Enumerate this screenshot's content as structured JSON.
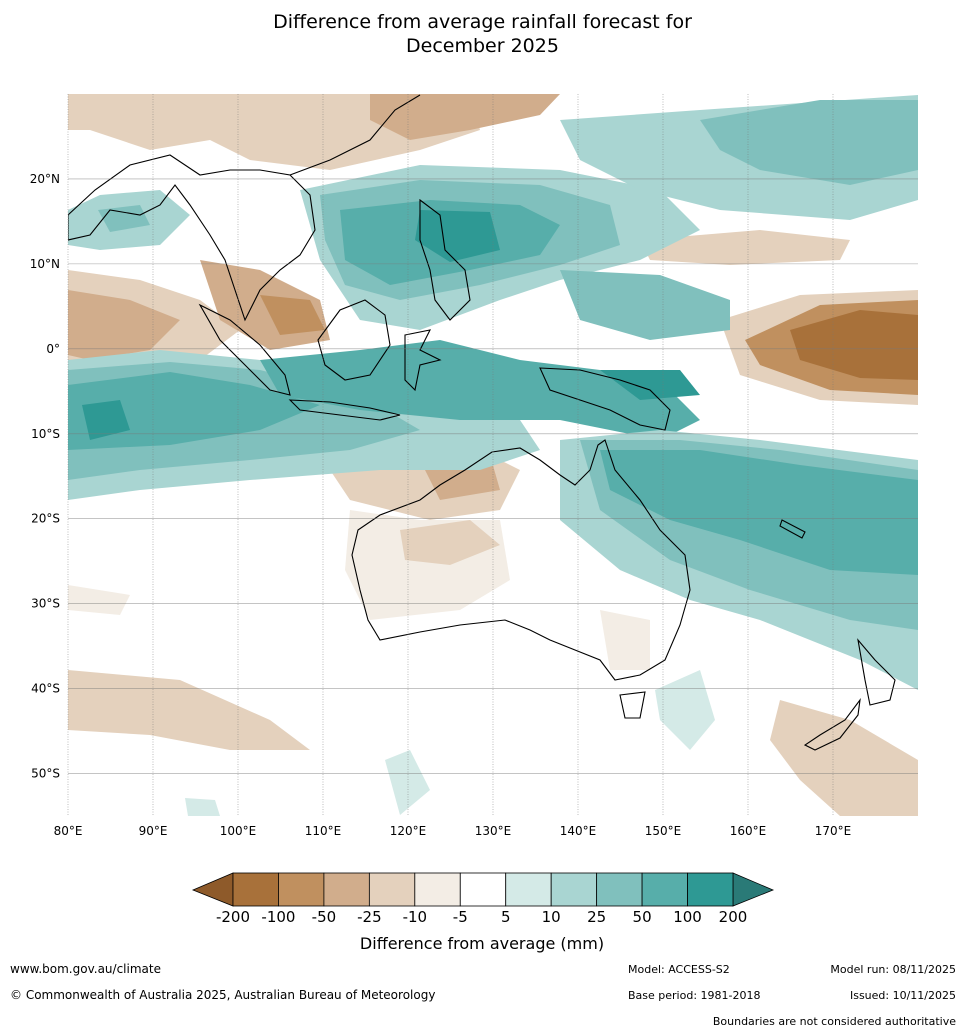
{
  "title": {
    "line1": "Difference from average rainfall forecast for",
    "line2": "December 2025"
  },
  "map": {
    "lon_range": [
      80,
      180
    ],
    "lat_range": [
      -55,
      30
    ],
    "lat_ticks": [
      {
        "value": 20,
        "label": "20°N"
      },
      {
        "value": 10,
        "label": "10°N"
      },
      {
        "value": 0,
        "label": "0°"
      },
      {
        "value": -10,
        "label": "10°S"
      },
      {
        "value": -20,
        "label": "20°S"
      },
      {
        "value": -30,
        "label": "30°S"
      },
      {
        "value": -40,
        "label": "40°S"
      },
      {
        "value": -50,
        "label": "50°S"
      }
    ],
    "lon_ticks": [
      {
        "value": 80,
        "label": "80°E"
      },
      {
        "value": 90,
        "label": "90°E"
      },
      {
        "value": 100,
        "label": "100°E"
      },
      {
        "value": 110,
        "label": "110°E"
      },
      {
        "value": 120,
        "label": "120°E"
      },
      {
        "value": 130,
        "label": "130°E"
      },
      {
        "value": 140,
        "label": "140°E"
      },
      {
        "value": 150,
        "label": "150°E"
      },
      {
        "value": 160,
        "label": "160°E"
      },
      {
        "value": 170,
        "label": "170°E"
      }
    ]
  },
  "colorbar": {
    "title": "Difference from average (mm)",
    "labels": [
      "-200",
      "-100",
      "-50",
      "-25",
      "-10",
      "-5",
      "5",
      "10",
      "25",
      "50",
      "100",
      "200"
    ],
    "colors": [
      "#a8713a",
      "#c0905f",
      "#d1ad8c",
      "#e4d1bd",
      "#f3ede5",
      "#ffffff",
      "#d4eae7",
      "#a9d5d2",
      "#80c0bd",
      "#57aeaa",
      "#2e9994"
    ],
    "low_extend_color": "#8e5a2a",
    "high_extend_color": "#2a7a77"
  },
  "footer": {
    "url": "www.bom.gov.au/climate",
    "copyright": "© Commonwealth of Australia 2025, Australian Bureau of Meteorology",
    "model": "Model: ACCESS-S2",
    "base_period": "Base period: 1981-2018",
    "model_run": "Model run: 08/11/2025",
    "issued": "Issued: 10/11/2025",
    "disclaimer": "Boundaries are not considered authoritative"
  }
}
